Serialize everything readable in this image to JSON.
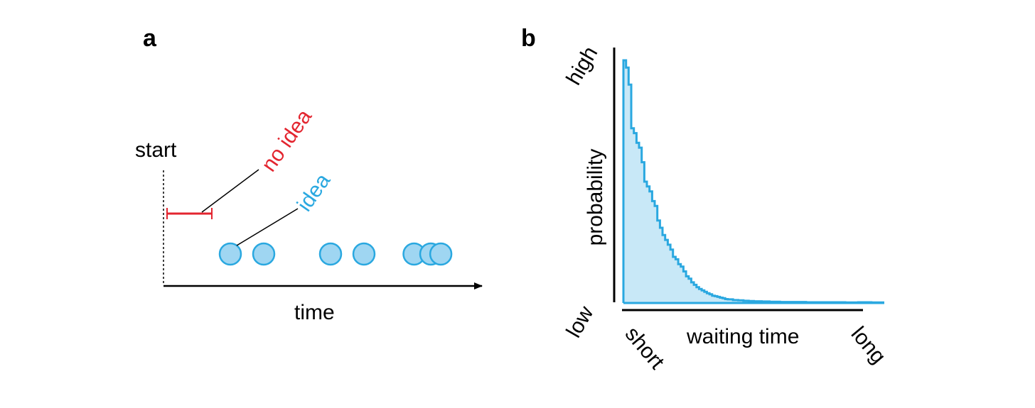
{
  "colors": {
    "idea": "#2aa8e0",
    "idea_fill": "#9fd6f2",
    "no_idea": "#e3252f",
    "hist_fill": "#c8e8f7",
    "axis": "#000000"
  },
  "panel_a": {
    "label": "a",
    "start_label": "start",
    "time_label": "time",
    "no_idea_label": "no idea",
    "idea_label": "idea",
    "idea_events": [
      2,
      3,
      5,
      6,
      7.5,
      8,
      8.3
    ]
  },
  "panel_b": {
    "label": "b",
    "y_high": "high",
    "y_label": "probability",
    "y_low": "low",
    "x_short": "short",
    "x_label": "waiting time",
    "x_long": "long"
  },
  "chart_data": {
    "type": "area",
    "title": "",
    "xlabel": "waiting time",
    "ylabel": "probability",
    "x_tick_labels": [
      "short",
      "long"
    ],
    "y_tick_labels": [
      "low",
      "high"
    ],
    "xlim": [
      0,
      1
    ],
    "ylim": [
      0,
      1
    ],
    "x": [
      0.0,
      0.01,
      0.02,
      0.03,
      0.04,
      0.05,
      0.06,
      0.07,
      0.08,
      0.09,
      0.1,
      0.11,
      0.12,
      0.13,
      0.14,
      0.15,
      0.16,
      0.17,
      0.18,
      0.19,
      0.2,
      0.21,
      0.22,
      0.23,
      0.24,
      0.25,
      0.26,
      0.27,
      0.28,
      0.29,
      0.3,
      0.31,
      0.32,
      0.33,
      0.34,
      0.35,
      0.36,
      0.37,
      0.38,
      0.39,
      0.4,
      0.42,
      0.44,
      0.46,
      0.48,
      0.5,
      0.53,
      0.56,
      0.6,
      0.65,
      0.7,
      0.75,
      0.8,
      0.85,
      0.9,
      0.95,
      1.0
    ],
    "y": [
      1.0,
      0.97,
      0.9,
      0.72,
      0.7,
      0.66,
      0.64,
      0.58,
      0.5,
      0.48,
      0.46,
      0.42,
      0.4,
      0.34,
      0.31,
      0.28,
      0.26,
      0.24,
      0.22,
      0.19,
      0.18,
      0.16,
      0.15,
      0.13,
      0.11,
      0.1,
      0.085,
      0.075,
      0.065,
      0.058,
      0.052,
      0.046,
      0.04,
      0.036,
      0.03,
      0.028,
      0.025,
      0.022,
      0.02,
      0.016,
      0.015,
      0.012,
      0.011,
      0.009,
      0.008,
      0.007,
      0.006,
      0.005,
      0.004,
      0.004,
      0.003,
      0.003,
      0.003,
      0.002,
      0.003,
      0.002,
      0.002
    ]
  }
}
